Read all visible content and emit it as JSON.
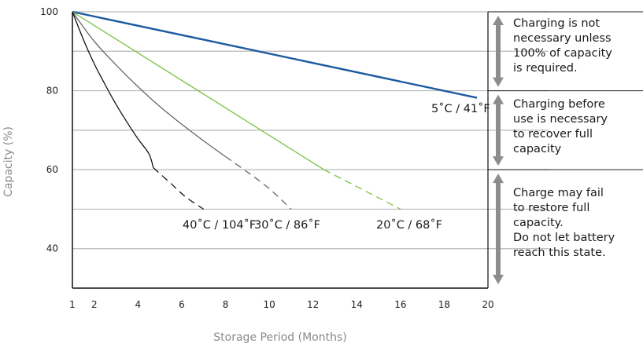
{
  "chart_data": {
    "type": "line",
    "xlabel": "Storage Period (Months)",
    "ylabel": "Capacity (%)",
    "x_ticks": [
      1,
      2,
      4,
      6,
      8,
      10,
      12,
      14,
      16,
      18,
      20
    ],
    "y_ticks": [
      40,
      60,
      80,
      100
    ],
    "xlim": [
      1,
      20
    ],
    "ylim": [
      30,
      100
    ],
    "grid": "horizontal",
    "series": [
      {
        "name": "5˚C / 41˚F",
        "color": "#1b5aa0",
        "solid": [
          [
            1,
            100
          ],
          [
            19.5,
            78.2
          ]
        ],
        "dashed": []
      },
      {
        "name": "20˚C / 68˚F",
        "color": "#7ac142",
        "solid": [
          [
            1,
            100
          ],
          [
            12.5,
            60.0
          ]
        ],
        "dashed": [
          [
            12.5,
            60.0
          ],
          [
            16,
            50
          ]
        ]
      },
      {
        "name": "30˚C / 86˚F",
        "color": "#666666",
        "solid": [
          [
            1,
            100
          ],
          [
            2,
            92.5
          ],
          [
            3,
            86.5
          ],
          [
            4,
            81.0
          ],
          [
            5,
            76.0
          ],
          [
            6,
            71.5
          ],
          [
            7,
            67.3
          ],
          [
            8,
            63.3
          ]
        ],
        "dashed": [
          [
            8,
            63.3
          ],
          [
            9,
            59.4
          ],
          [
            10,
            55.2
          ],
          [
            11,
            50
          ]
        ]
      },
      {
        "name": "40˚C / 104˚F",
        "color": "#111111",
        "solid": [
          [
            1,
            100
          ],
          [
            1.5,
            93.0
          ],
          [
            2,
            86.8
          ],
          [
            2.5,
            81.5
          ],
          [
            3,
            76.5
          ],
          [
            3.5,
            72.0
          ],
          [
            4,
            67.8
          ],
          [
            4.5,
            64.0
          ],
          [
            4.7,
            60.5
          ]
        ],
        "dashed": [
          [
            4.7,
            60.5
          ],
          [
            5.5,
            56.5
          ],
          [
            6.2,
            53.0
          ],
          [
            7,
            50
          ]
        ]
      }
    ],
    "regions": [
      {
        "range": [
          80,
          100
        ],
        "text": "Charging is not\nnecessary unless\n100% of capacity\nis required."
      },
      {
        "range": [
          60,
          80
        ],
        "text": "Charging before\nuse is necessary\nto recover full\ncapacity"
      },
      {
        "range": [
          30,
          60
        ],
        "text": "Charge may fail\nto restore full\ncapacity.\nDo not let battery\nreach this state."
      }
    ],
    "colors": {
      "grid": "#b8b8b8",
      "axis": "#111111",
      "arrow": "#8c8c8c"
    }
  }
}
